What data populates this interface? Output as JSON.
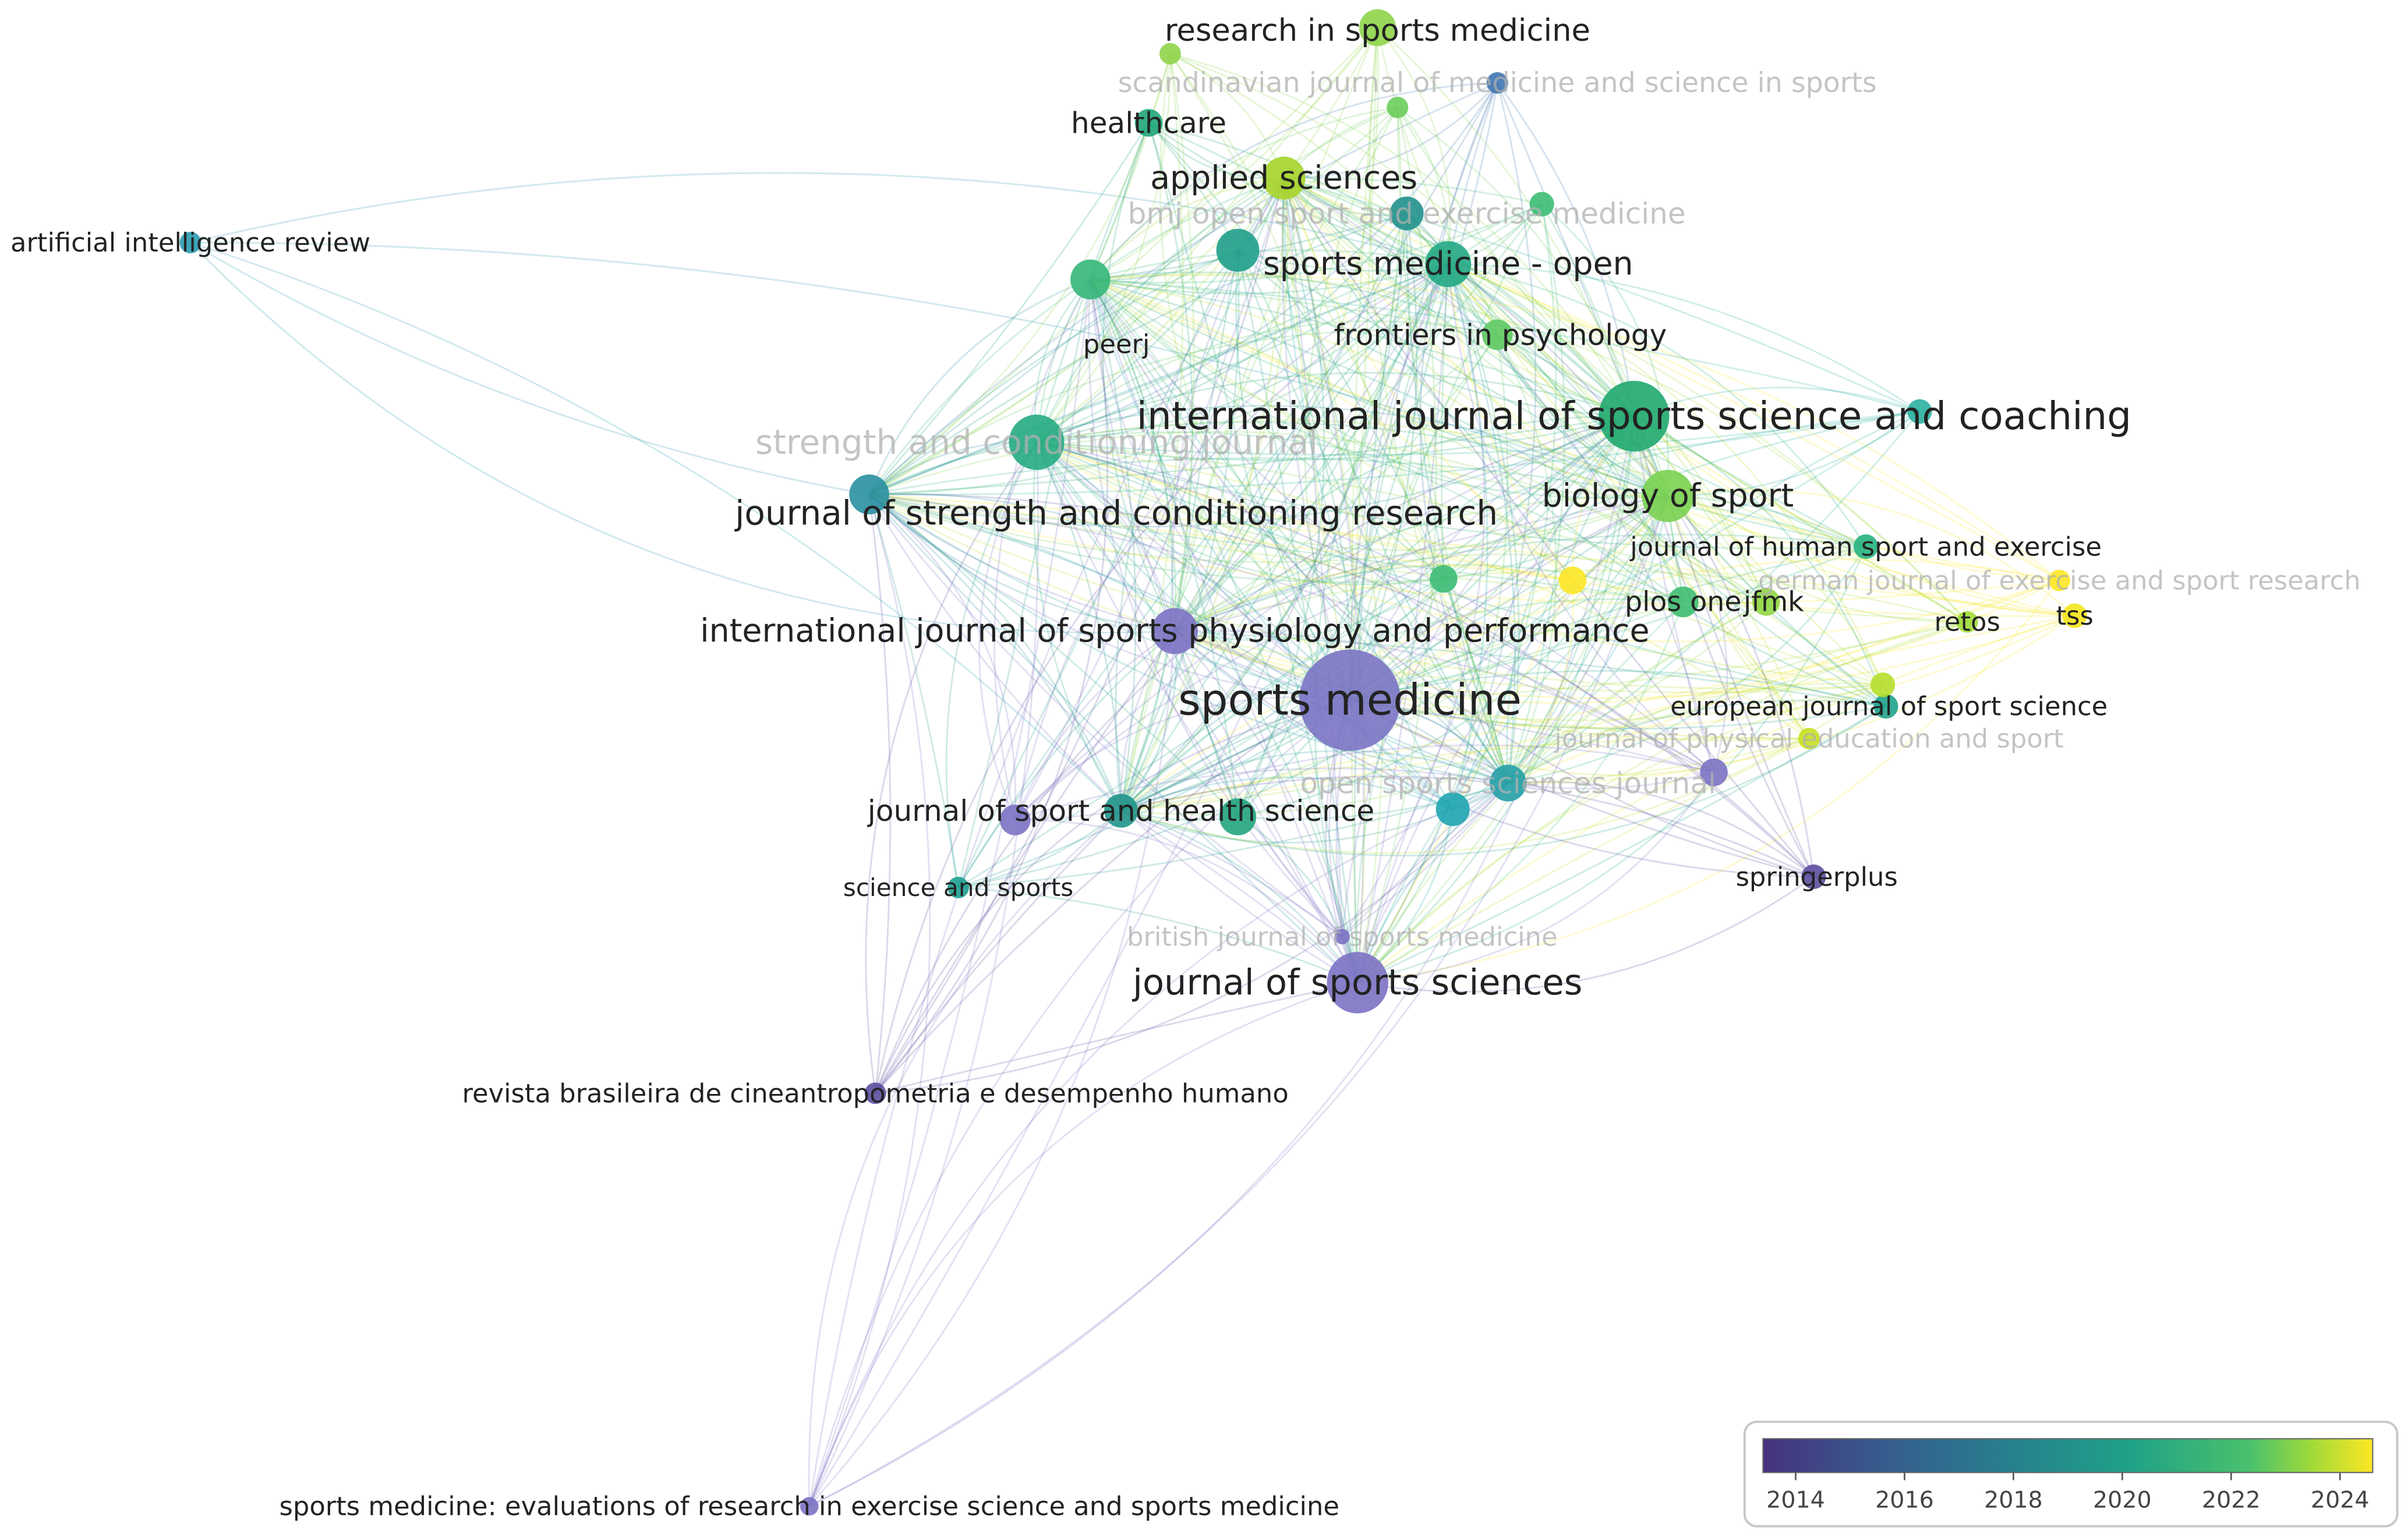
{
  "nodes": [
    {
      "label": "research in sports medicine",
      "color": "#8fd44a"
    },
    {
      "label": "scandinavian journal of medicine and science in sports",
      "color": "#3f75b0"
    },
    {
      "label": "healthcare",
      "color": "#1fa57a"
    },
    {
      "label": "applied sciences",
      "color": "#a6d42a"
    },
    {
      "label": "bmj open sport and exercise medicine",
      "color": "#21918c"
    },
    {
      "label": "sports medicine - open",
      "color": "#22a884"
    },
    {
      "label": "frontiers in psychology",
      "color": "#5ec962"
    },
    {
      "label": "peerj",
      "color": "#35b779"
    },
    {
      "label": "international journal of sports science and coaching",
      "color": "#20a86e"
    },
    {
      "label": "strength and conditioning journal",
      "color": "#25ab82"
    },
    {
      "label": "journal of strength and conditioning research",
      "color": "#2a8fa0"
    },
    {
      "label": "biology of sport",
      "color": "#7ad151"
    },
    {
      "label": "journal of human sport and exercise",
      "color": "#27b27f"
    },
    {
      "label": "german journal of exercise and sport research",
      "color": "#fde725"
    },
    {
      "label": "plos one",
      "color": "#40bd72"
    },
    {
      "label": "jfmk",
      "color": "#8fd744"
    },
    {
      "label": "retos",
      "color": "#a0da39"
    },
    {
      "label": "tss",
      "color": "#f4e61e"
    },
    {
      "label": "international journal of sports physiology and performance",
      "color": "#7c72c4"
    },
    {
      "label": "sports medicine",
      "color": "#7a74c4"
    },
    {
      "label": "european journal of sport science",
      "color": "#1fa28c"
    },
    {
      "label": "journal of physical education and sport",
      "color": "#c8e020"
    },
    {
      "label": "open sports sciences journal",
      "color": "#24a0a6"
    },
    {
      "label": "journal of sport and health science",
      "color": "#20948b"
    },
    {
      "label": "science and sports",
      "color": "#1fa090"
    },
    {
      "label": "springerplus",
      "color": "#5d4c9e"
    },
    {
      "label": "british journal of sports medicine",
      "color": "#7c72c4"
    },
    {
      "label": "journal of sports sciences",
      "color": "#7c72c4"
    },
    {
      "label": "revista brasileira de cineantropometria e desempenho humano",
      "color": "#5c4fa0"
    },
    {
      "label": "sports medicine: evaluations of research in exercise science and sports medicine",
      "color": "#7c72c4"
    },
    {
      "label": "artificial intelligence review",
      "color": "#2a9bb0"
    }
  ],
  "legend": {
    "range": [
      2013.4,
      2024.6
    ],
    "ticks": [
      2014,
      2016,
      2018,
      2020,
      2022,
      2024
    ]
  }
}
